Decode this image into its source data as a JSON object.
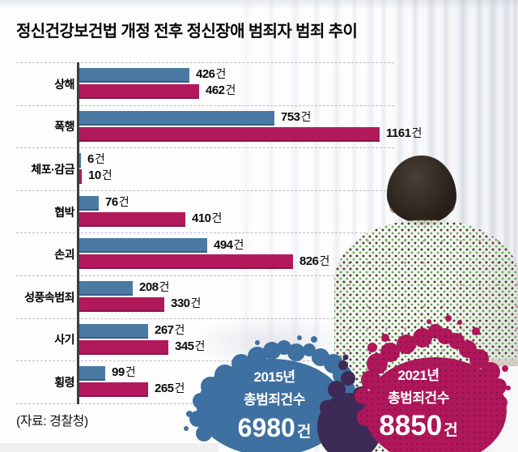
{
  "title": "정신건강보건법 개정 전후 정신장애 범죄자 범죄 추이",
  "source": "(자료: 경찰청)",
  "chart_data": {
    "type": "bar",
    "orientation": "horizontal",
    "title": "정신건강보건법 개정 전후 정신장애 범죄자 범죄 추이",
    "categories": [
      "상해",
      "폭행",
      "체포·감금",
      "협박",
      "손괴",
      "성풍속범죄",
      "사기",
      "횡령"
    ],
    "series": [
      {
        "name": "2015",
        "color": "#4a7aa4",
        "values": [
          426,
          753,
          6,
          76,
          494,
          208,
          267,
          99
        ]
      },
      {
        "name": "2021",
        "color": "#b2195c",
        "values": [
          462,
          1161,
          10,
          410,
          826,
          330,
          345,
          265
        ]
      }
    ],
    "value_suffix": "건",
    "xmax": 1161,
    "grid": "dashed-row-separators",
    "legend": "none"
  },
  "totals": {
    "y2015": {
      "year_label": "2015년",
      "caption": "총범죄건수",
      "value": "6980",
      "unit": "건",
      "color": "#3e70a1"
    },
    "y2021": {
      "year_label": "2021년",
      "caption": "총범죄건수",
      "value": "8850",
      "unit": "건",
      "color": "#b0165a"
    }
  },
  "colors": {
    "bar_2015": "#4a7aa4",
    "bar_2021": "#b2195c",
    "splash_2015": "#3e70a1",
    "splash_2021": "#b0165a",
    "splash_overlap": "#3e2a57",
    "axis": "#3c3c40",
    "grid_dash": "#bdbec3"
  }
}
